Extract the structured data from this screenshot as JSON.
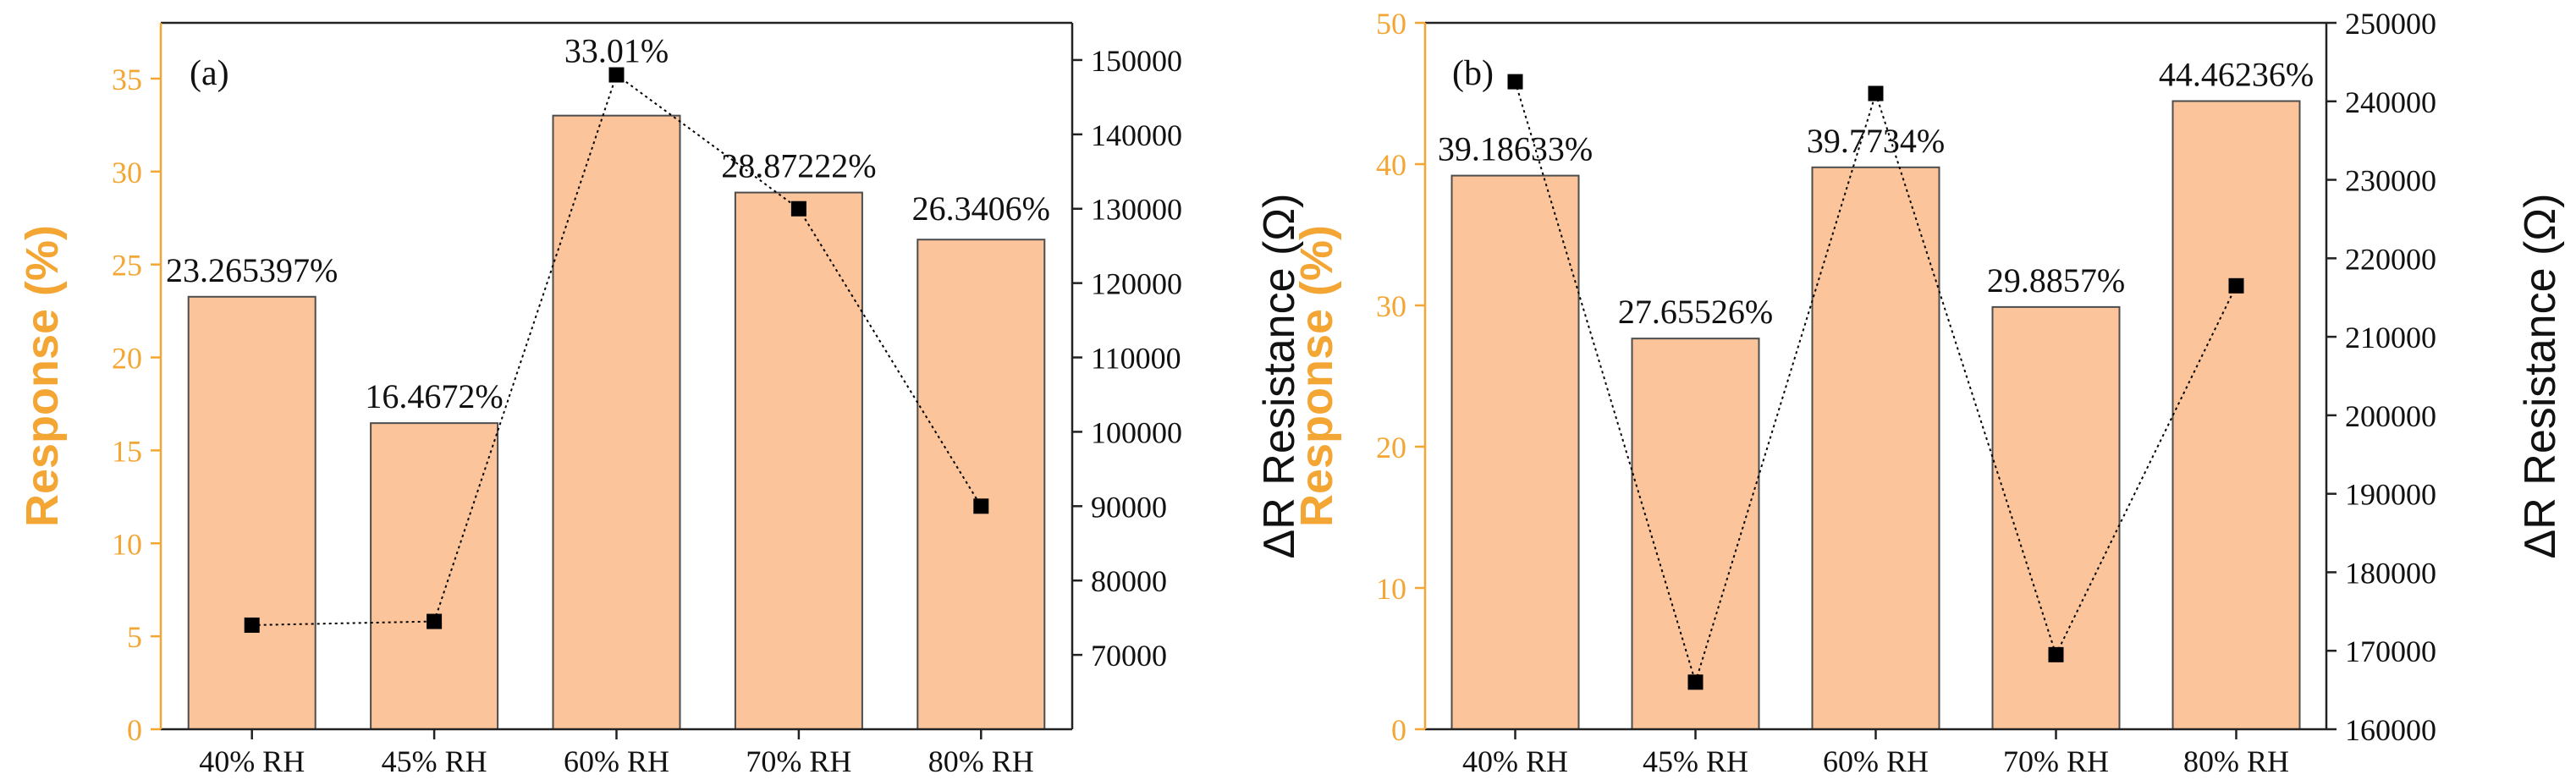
{
  "chart_data": [
    {
      "type": "bar",
      "panel_label": "(a)",
      "categories": [
        "40% RH",
        "45% RH",
        "60% RH",
        "70% RH",
        "80% RH"
      ],
      "series": [
        {
          "name": "Response (%)",
          "axis": "left",
          "values": [
            23.265397,
            16.4672,
            33.01,
            28.87222,
            26.3406
          ],
          "labels": [
            "23.265397%",
            "16.4672%",
            "33.01%",
            "28.87222%",
            "26.3406%"
          ]
        },
        {
          "name": "ΔR Resistance (Ω)",
          "axis": "right",
          "type": "line",
          "values": [
            74000,
            74500,
            148000,
            130000,
            90000
          ]
        }
      ],
      "ylabel": "Response (%)",
      "ylabel_right": "ΔR Resistance (Ω)",
      "ylim": [
        0,
        38
      ],
      "yticks": [
        "0",
        "5",
        "10",
        "15",
        "20",
        "25",
        "30",
        "35"
      ],
      "ylim_right": [
        60000,
        155000
      ],
      "yticks_right": [
        "70000",
        "80000",
        "90000",
        "100000",
        "110000",
        "120000",
        "130000",
        "140000",
        "150000"
      ],
      "colors": {
        "bar_fill": "#fbc49a",
        "bar_stroke": "#4d4d4d",
        "left_axis": "#f4a635",
        "line": "#000000"
      }
    },
    {
      "type": "bar",
      "panel_label": "(b)",
      "categories": [
        "40% RH",
        "45% RH",
        "60% RH",
        "70% RH",
        "80% RH"
      ],
      "series": [
        {
          "name": "Response (%)",
          "axis": "left",
          "values": [
            39.18633,
            27.65526,
            39.7734,
            29.8857,
            44.46236
          ],
          "labels": [
            "39.18633%",
            "27.65526%",
            "39.7734%",
            "29.8857%",
            "44.46236%"
          ]
        },
        {
          "name": "ΔR Resistance (Ω)",
          "axis": "right",
          "type": "line",
          "values": [
            242500,
            166000,
            241000,
            169500,
            216500
          ]
        }
      ],
      "ylabel": "Response (%)",
      "ylabel_right": "ΔR Resistance (Ω)",
      "ylim": [
        0,
        50
      ],
      "yticks": [
        "0",
        "10",
        "20",
        "30",
        "40",
        "50"
      ],
      "ylim_right": [
        160000,
        250000
      ],
      "yticks_right": [
        "160000",
        "170000",
        "180000",
        "190000",
        "200000",
        "210000",
        "220000",
        "230000",
        "240000",
        "250000"
      ],
      "colors": {
        "bar_fill": "#fbc49a",
        "bar_stroke": "#4d4d4d",
        "left_axis": "#f4a635",
        "line": "#000000"
      }
    }
  ]
}
